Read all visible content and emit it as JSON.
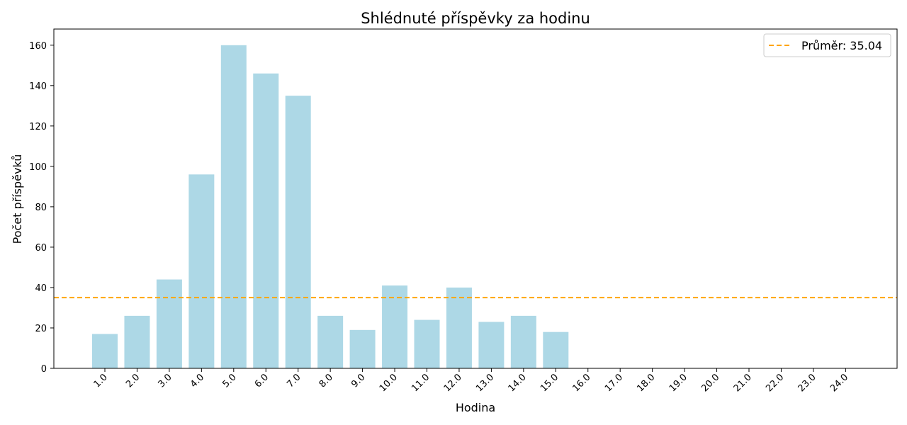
{
  "chart_data": {
    "type": "bar",
    "title": "Shlédnuté příspěvky za hodinu",
    "xlabel": "Hodina",
    "ylabel": "Počet příspěvků",
    "categories": [
      "1.0",
      "2.0",
      "3.0",
      "4.0",
      "5.0",
      "6.0",
      "7.0",
      "8.0",
      "9.0",
      "10.0",
      "11.0",
      "12.0",
      "13.0",
      "14.0",
      "15.0",
      "16.0",
      "17.0",
      "18.0",
      "19.0",
      "20.0",
      "21.0",
      "22.0",
      "23.0",
      "24.0"
    ],
    "values": [
      17,
      26,
      44,
      96,
      160,
      146,
      135,
      26,
      19,
      41,
      24,
      40,
      23,
      26,
      18,
      0,
      0,
      0,
      0,
      0,
      0,
      0,
      0,
      0
    ],
    "ylim": [
      0,
      168
    ],
    "yticks": [
      0,
      20,
      40,
      60,
      80,
      100,
      120,
      140,
      160
    ],
    "bar_color": "#add8e6",
    "reference_line": {
      "label": "Průměr: 35.04",
      "value": 35.04,
      "color": "#ffa500",
      "style": "dashed"
    },
    "legend_position": "top-right",
    "grid": false
  }
}
